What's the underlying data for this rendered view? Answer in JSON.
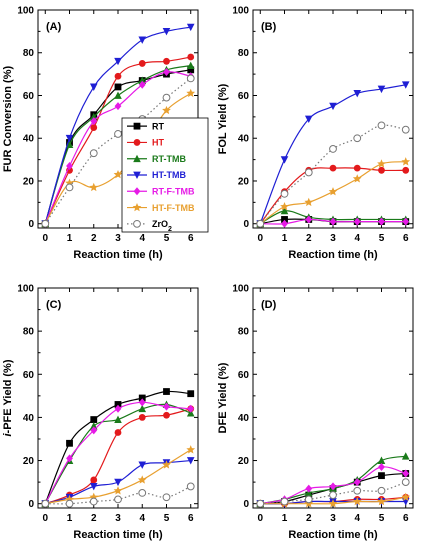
{
  "chart_data": [
    {
      "type": "line",
      "panel_label": "(A)",
      "xlabel": "Reaction time (h)",
      "ylabel": "FUR Conversion (%)",
      "xlim": [
        -0.3,
        6.3
      ],
      "ylim": [
        -2,
        100
      ],
      "x_ticks": [
        0,
        1,
        2,
        3,
        4,
        5,
        6
      ],
      "y_ticks": [
        0,
        20,
        40,
        60,
        80,
        100
      ],
      "x": [
        0,
        1,
        2,
        3,
        4,
        5,
        6
      ],
      "legend": {
        "placement": "right-middle",
        "labels": [
          "RT",
          "HT",
          "RT-TMB",
          "HT-TMB",
          "RT-F-TMB",
          "HT-F-TMB",
          "ZrO2"
        ]
      },
      "series": [
        {
          "name": "RT",
          "color": "#000000",
          "marker": "square",
          "style": "solid",
          "values": [
            0,
            38,
            51,
            64,
            67,
            70,
            72
          ]
        },
        {
          "name": "HT",
          "color": "#e31a1c",
          "marker": "circle",
          "style": "solid",
          "values": [
            0,
            25,
            45,
            69,
            75,
            76,
            78
          ]
        },
        {
          "name": "RT-TMB",
          "color": "#1a7a1a",
          "marker": "triangle-up",
          "style": "solid",
          "values": [
            0,
            37,
            50,
            60,
            67,
            72,
            74
          ]
        },
        {
          "name": "HT-TMB",
          "color": "#1f1fd4",
          "marker": "triangle-down",
          "style": "solid",
          "values": [
            0,
            40,
            64,
            76,
            86,
            90,
            92
          ]
        },
        {
          "name": "RT-F-TMB",
          "color": "#e61ae6",
          "marker": "diamond",
          "style": "solid",
          "values": [
            0,
            27,
            48,
            55,
            65,
            71,
            69
          ]
        },
        {
          "name": "HT-F-TMB",
          "color": "#e8a030",
          "marker": "star",
          "style": "solid",
          "values": [
            0,
            19,
            17,
            23,
            36,
            53,
            61
          ]
        },
        {
          "name": "ZrO2",
          "color": "#777777",
          "marker": "circle-open",
          "style": "dotted",
          "values": [
            0,
            17,
            33,
            42,
            49,
            59,
            68
          ]
        }
      ]
    },
    {
      "type": "line",
      "panel_label": "(B)",
      "xlabel": "Reaction time (h)",
      "ylabel": "FOL Yield (%)",
      "xlim": [
        -0.3,
        6.3
      ],
      "ylim": [
        -2,
        100
      ],
      "x_ticks": [
        0,
        1,
        2,
        3,
        4,
        5,
        6
      ],
      "y_ticks": [
        0,
        20,
        40,
        60,
        80,
        100
      ],
      "x": [
        0,
        1,
        2,
        3,
        4,
        5,
        6
      ],
      "series": [
        {
          "name": "RT",
          "color": "#000000",
          "marker": "square",
          "style": "solid",
          "values": [
            0,
            2,
            2,
            1,
            1,
            1,
            1
          ]
        },
        {
          "name": "HT",
          "color": "#e31a1c",
          "marker": "circle",
          "style": "solid",
          "values": [
            0,
            15,
            25,
            26,
            26,
            25,
            25
          ]
        },
        {
          "name": "RT-TMB",
          "color": "#1a7a1a",
          "marker": "triangle-up",
          "style": "solid",
          "values": [
            0,
            6,
            3,
            2,
            2,
            2,
            2
          ]
        },
        {
          "name": "HT-TMB",
          "color": "#1f1fd4",
          "marker": "triangle-down",
          "style": "solid",
          "values": [
            0,
            30,
            49,
            55,
            61,
            63,
            65
          ]
        },
        {
          "name": "RT-F-TMB",
          "color": "#e61ae6",
          "marker": "diamond",
          "style": "solid",
          "values": [
            0,
            0,
            2,
            1,
            1,
            1,
            1
          ]
        },
        {
          "name": "HT-F-TMB",
          "color": "#e8a030",
          "marker": "star",
          "style": "solid",
          "values": [
            0,
            8,
            10,
            15,
            21,
            28,
            29
          ]
        },
        {
          "name": "ZrO2",
          "color": "#777777",
          "marker": "circle-open",
          "style": "dotted",
          "values": [
            0,
            14,
            24,
            35,
            40,
            46,
            44
          ]
        }
      ]
    },
    {
      "type": "line",
      "panel_label": "(C)",
      "xlabel": "Reaction time (h)",
      "ylabel": "i-PFE Yield (%)",
      "xlim": [
        -0.3,
        6.3
      ],
      "ylim": [
        -2,
        100
      ],
      "x_ticks": [
        0,
        1,
        2,
        3,
        4,
        5,
        6
      ],
      "y_ticks": [
        0,
        20,
        40,
        60,
        80,
        100
      ],
      "x": [
        0,
        1,
        2,
        3,
        4,
        5,
        6
      ],
      "series": [
        {
          "name": "RT",
          "color": "#000000",
          "marker": "square",
          "style": "solid",
          "values": [
            0,
            28,
            39,
            46,
            49,
            52,
            51
          ]
        },
        {
          "name": "HT",
          "color": "#e31a1c",
          "marker": "circle",
          "style": "solid",
          "values": [
            0,
            4,
            11,
            33,
            40,
            41,
            44
          ]
        },
        {
          "name": "RT-TMB",
          "color": "#1a7a1a",
          "marker": "triangle-up",
          "style": "solid",
          "values": [
            0,
            20,
            36,
            39,
            44,
            46,
            42
          ]
        },
        {
          "name": "HT-TMB",
          "color": "#1f1fd4",
          "marker": "triangle-down",
          "style": "solid",
          "values": [
            0,
            3,
            8,
            10,
            18,
            19,
            20
          ]
        },
        {
          "name": "RT-F-TMB",
          "color": "#e61ae6",
          "marker": "diamond",
          "style": "solid",
          "values": [
            0,
            21,
            34,
            44,
            47,
            45,
            44
          ]
        },
        {
          "name": "HT-F-TMB",
          "color": "#e8a030",
          "marker": "star",
          "style": "solid",
          "values": [
            0,
            2,
            3,
            6,
            11,
            18,
            25
          ]
        },
        {
          "name": "ZrO2",
          "color": "#777777",
          "marker": "circle-open",
          "style": "dotted",
          "values": [
            0,
            0,
            1,
            2,
            5,
            3,
            8
          ]
        }
      ]
    },
    {
      "type": "line",
      "panel_label": "(D)",
      "xlabel": "Reaction time (h)",
      "ylabel": "DFE Yield (%)",
      "xlim": [
        -0.3,
        6.3
      ],
      "ylim": [
        -2,
        100
      ],
      "x_ticks": [
        0,
        1,
        2,
        3,
        4,
        5,
        6
      ],
      "y_ticks": [
        0,
        20,
        40,
        60,
        80,
        100
      ],
      "x": [
        0,
        1,
        2,
        3,
        4,
        5,
        6
      ],
      "series": [
        {
          "name": "RT",
          "color": "#000000",
          "marker": "square",
          "style": "solid",
          "values": [
            0,
            1,
            4,
            7,
            10,
            13,
            14
          ]
        },
        {
          "name": "HT",
          "color": "#e31a1c",
          "marker": "circle",
          "style": "solid",
          "values": [
            0,
            0,
            1,
            1,
            2,
            2,
            3
          ]
        },
        {
          "name": "RT-TMB",
          "color": "#1a7a1a",
          "marker": "triangle-up",
          "style": "solid",
          "values": [
            0,
            2,
            5,
            7,
            11,
            20,
            22
          ]
        },
        {
          "name": "HT-TMB",
          "color": "#1f1fd4",
          "marker": "triangle-down",
          "style": "solid",
          "values": [
            0,
            0,
            1,
            1,
            1,
            1,
            1
          ]
        },
        {
          "name": "RT-F-TMB",
          "color": "#e61ae6",
          "marker": "diamond",
          "style": "solid",
          "values": [
            0,
            2,
            7,
            8,
            10,
            17,
            14
          ]
        },
        {
          "name": "HT-F-TMB",
          "color": "#e8a030",
          "marker": "star",
          "style": "solid",
          "values": [
            0,
            0,
            0,
            0,
            1,
            1,
            3
          ]
        },
        {
          "name": "ZrO2",
          "color": "#777777",
          "marker": "circle-open",
          "style": "dotted",
          "values": [
            0,
            1,
            2,
            4,
            6,
            6,
            10
          ]
        }
      ]
    }
  ]
}
